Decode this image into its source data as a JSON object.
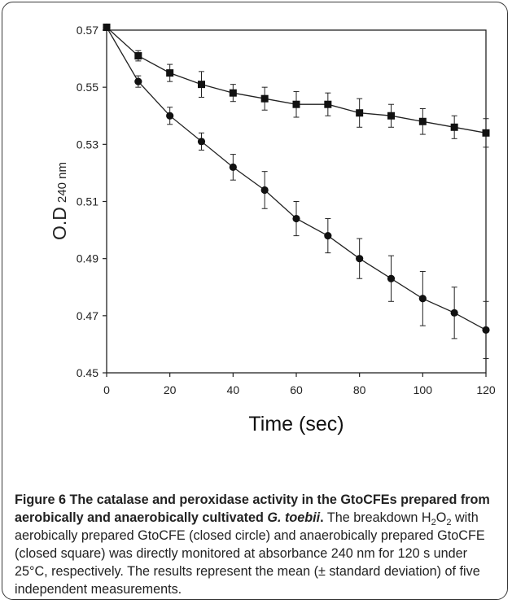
{
  "chart_data": {
    "type": "line",
    "xlabel": "Time (sec)",
    "ylabel_main": "O.D",
    "ylabel_sub": "240 nm",
    "xlim": [
      0,
      120
    ],
    "ylim": [
      0.45,
      0.57
    ],
    "xticks": [
      "0",
      "20",
      "40",
      "60",
      "80",
      "100",
      "120"
    ],
    "yticks": [
      "0.45",
      "0.47",
      "0.49",
      "0.51",
      "0.53",
      "0.55",
      "0.57"
    ],
    "x": [
      0,
      10,
      20,
      30,
      40,
      50,
      60,
      70,
      80,
      90,
      100,
      110,
      120
    ],
    "series": [
      {
        "marker": "circle",
        "values": [
          0.571,
          0.552,
          0.54,
          0.531,
          0.522,
          0.514,
          0.504,
          0.498,
          0.49,
          0.483,
          0.476,
          0.471,
          0.465
        ],
        "errors": [
          0,
          0.002,
          0.003,
          0.003,
          0.0045,
          0.0065,
          0.006,
          0.006,
          0.007,
          0.008,
          0.0095,
          0.009,
          0.01
        ]
      },
      {
        "marker": "square",
        "values": [
          0.571,
          0.561,
          0.555,
          0.551,
          0.548,
          0.546,
          0.544,
          0.544,
          0.541,
          0.54,
          0.538,
          0.536,
          0.534
        ],
        "errors": [
          0,
          0.0018,
          0.003,
          0.0045,
          0.003,
          0.004,
          0.0045,
          0.004,
          0.005,
          0.004,
          0.0045,
          0.004,
          0.005
        ]
      }
    ]
  },
  "caption": {
    "figure_label": "Figure 6",
    "title_part1": "The catalase and peroxidase activity in the GtoCFEs prepared from aerobically and anaerobically cultivated ",
    "title_species": "G. toebii",
    "title_end": ".",
    "body_part1": " The breakdown H",
    "sub1": "2",
    "body_part2": "O",
    "sub2": "2",
    "body_part3": " with aerobically prepared GtoCFE (closed circle) and anaerobically prepared GtoCFE (closed square) was directly monitored at absorbance 240 nm for 120 s under 25°C, respectively. The results represent the mean (± standard deviation) of five independent measurements."
  }
}
